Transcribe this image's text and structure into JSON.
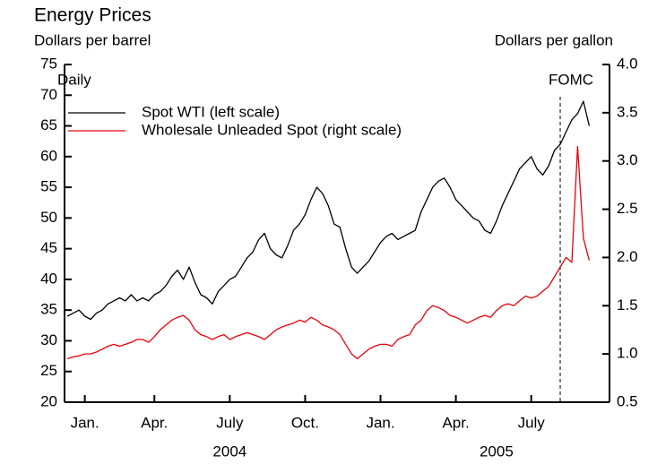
{
  "chart_data": {
    "type": "line",
    "title": "Energy Prices",
    "y_label": "Dollars per barrel",
    "y2_label": "Dollars per gallon",
    "note": "Daily",
    "annotations": [
      {
        "text": "FOMC",
        "index": 85
      }
    ],
    "year_labels": [
      {
        "label": "2004",
        "index": 28
      },
      {
        "label": "2005",
        "index": 74
      }
    ],
    "legend": "upper left",
    "categories": [
      null,
      null,
      null,
      "Jan.",
      null,
      null,
      null,
      null,
      null,
      null,
      null,
      null,
      null,
      null,
      null,
      "Apr.",
      null,
      null,
      null,
      null,
      null,
      null,
      null,
      null,
      null,
      null,
      null,
      null,
      "July",
      null,
      null,
      null,
      null,
      null,
      null,
      null,
      null,
      null,
      null,
      null,
      null,
      "Oct.",
      null,
      null,
      null,
      null,
      null,
      null,
      null,
      null,
      null,
      null,
      null,
      null,
      "Jan.",
      null,
      null,
      null,
      null,
      null,
      null,
      null,
      null,
      null,
      null,
      null,
      null,
      "Apr.",
      null,
      null,
      null,
      null,
      null,
      null,
      null,
      null,
      null,
      null,
      null,
      null,
      "July",
      null,
      null,
      null,
      null,
      null,
      null,
      null,
      null,
      null,
      null,
      null,
      null,
      null
    ],
    "series": [
      {
        "name": "Spot WTI (left scale)",
        "color": "#000000",
        "axis": "y",
        "values": [
          34,
          34.5,
          35,
          34,
          33.5,
          34.5,
          35,
          36,
          36.5,
          37,
          36.5,
          37.5,
          36.5,
          37,
          36.5,
          37.5,
          38,
          39,
          40.5,
          41.5,
          40,
          42,
          39.5,
          37.5,
          37,
          36,
          38,
          39,
          40,
          40.5,
          42,
          43.5,
          44.5,
          46.5,
          47.5,
          45,
          44,
          43.5,
          45.5,
          48,
          49,
          50.5,
          53,
          55,
          54,
          52,
          49,
          48.5,
          45,
          42,
          41,
          42,
          43,
          44.5,
          46,
          47,
          47.5,
          46.5,
          47,
          47.5,
          48,
          51,
          53,
          55,
          56,
          56.5,
          55,
          53,
          52,
          51,
          50,
          49.5,
          48,
          47.5,
          49.5,
          52,
          54,
          56,
          58,
          59,
          60,
          58,
          57,
          58.5,
          61,
          62,
          64,
          66,
          67,
          69,
          65,
          null,
          null,
          null
        ]
      },
      {
        "name": "Wholesale Unleaded Spot (right scale)",
        "color": "#e8000b",
        "axis": "y2",
        "values": [
          0.95,
          0.97,
          0.98,
          1.0,
          1.0,
          1.02,
          1.05,
          1.08,
          1.1,
          1.08,
          1.1,
          1.12,
          1.15,
          1.15,
          1.12,
          1.18,
          1.25,
          1.3,
          1.35,
          1.38,
          1.4,
          1.35,
          1.25,
          1.2,
          1.18,
          1.15,
          1.18,
          1.2,
          1.15,
          1.18,
          1.2,
          1.22,
          1.2,
          1.18,
          1.15,
          1.2,
          1.25,
          1.28,
          1.3,
          1.32,
          1.35,
          1.33,
          1.38,
          1.35,
          1.3,
          1.28,
          1.25,
          1.2,
          1.1,
          1.0,
          0.95,
          1.0,
          1.05,
          1.08,
          1.1,
          1.1,
          1.08,
          1.15,
          1.18,
          1.2,
          1.3,
          1.35,
          1.45,
          1.5,
          1.48,
          1.45,
          1.4,
          1.38,
          1.35,
          1.32,
          1.35,
          1.38,
          1.4,
          1.38,
          1.45,
          1.5,
          1.52,
          1.5,
          1.55,
          1.6,
          1.58,
          1.6,
          1.65,
          1.7,
          1.8,
          1.9,
          2.0,
          1.95,
          3.15,
          2.2,
          1.97,
          null,
          null,
          null
        ]
      }
    ],
    "ylim": [
      20,
      75
    ],
    "yticks": [
      20,
      25,
      30,
      35,
      40,
      45,
      50,
      55,
      60,
      65,
      70,
      75
    ],
    "y2lim": [
      0.5,
      4.0
    ],
    "y2ticks": [
      0.5,
      {
        "value": 1,
        "label": "1.0"
      },
      1.5,
      {
        "value": 2,
        "label": "2.0"
      },
      2.5,
      {
        "value": 3,
        "label": "3.0"
      },
      3.5,
      {
        "value": 4,
        "label": "4.0"
      }
    ]
  }
}
